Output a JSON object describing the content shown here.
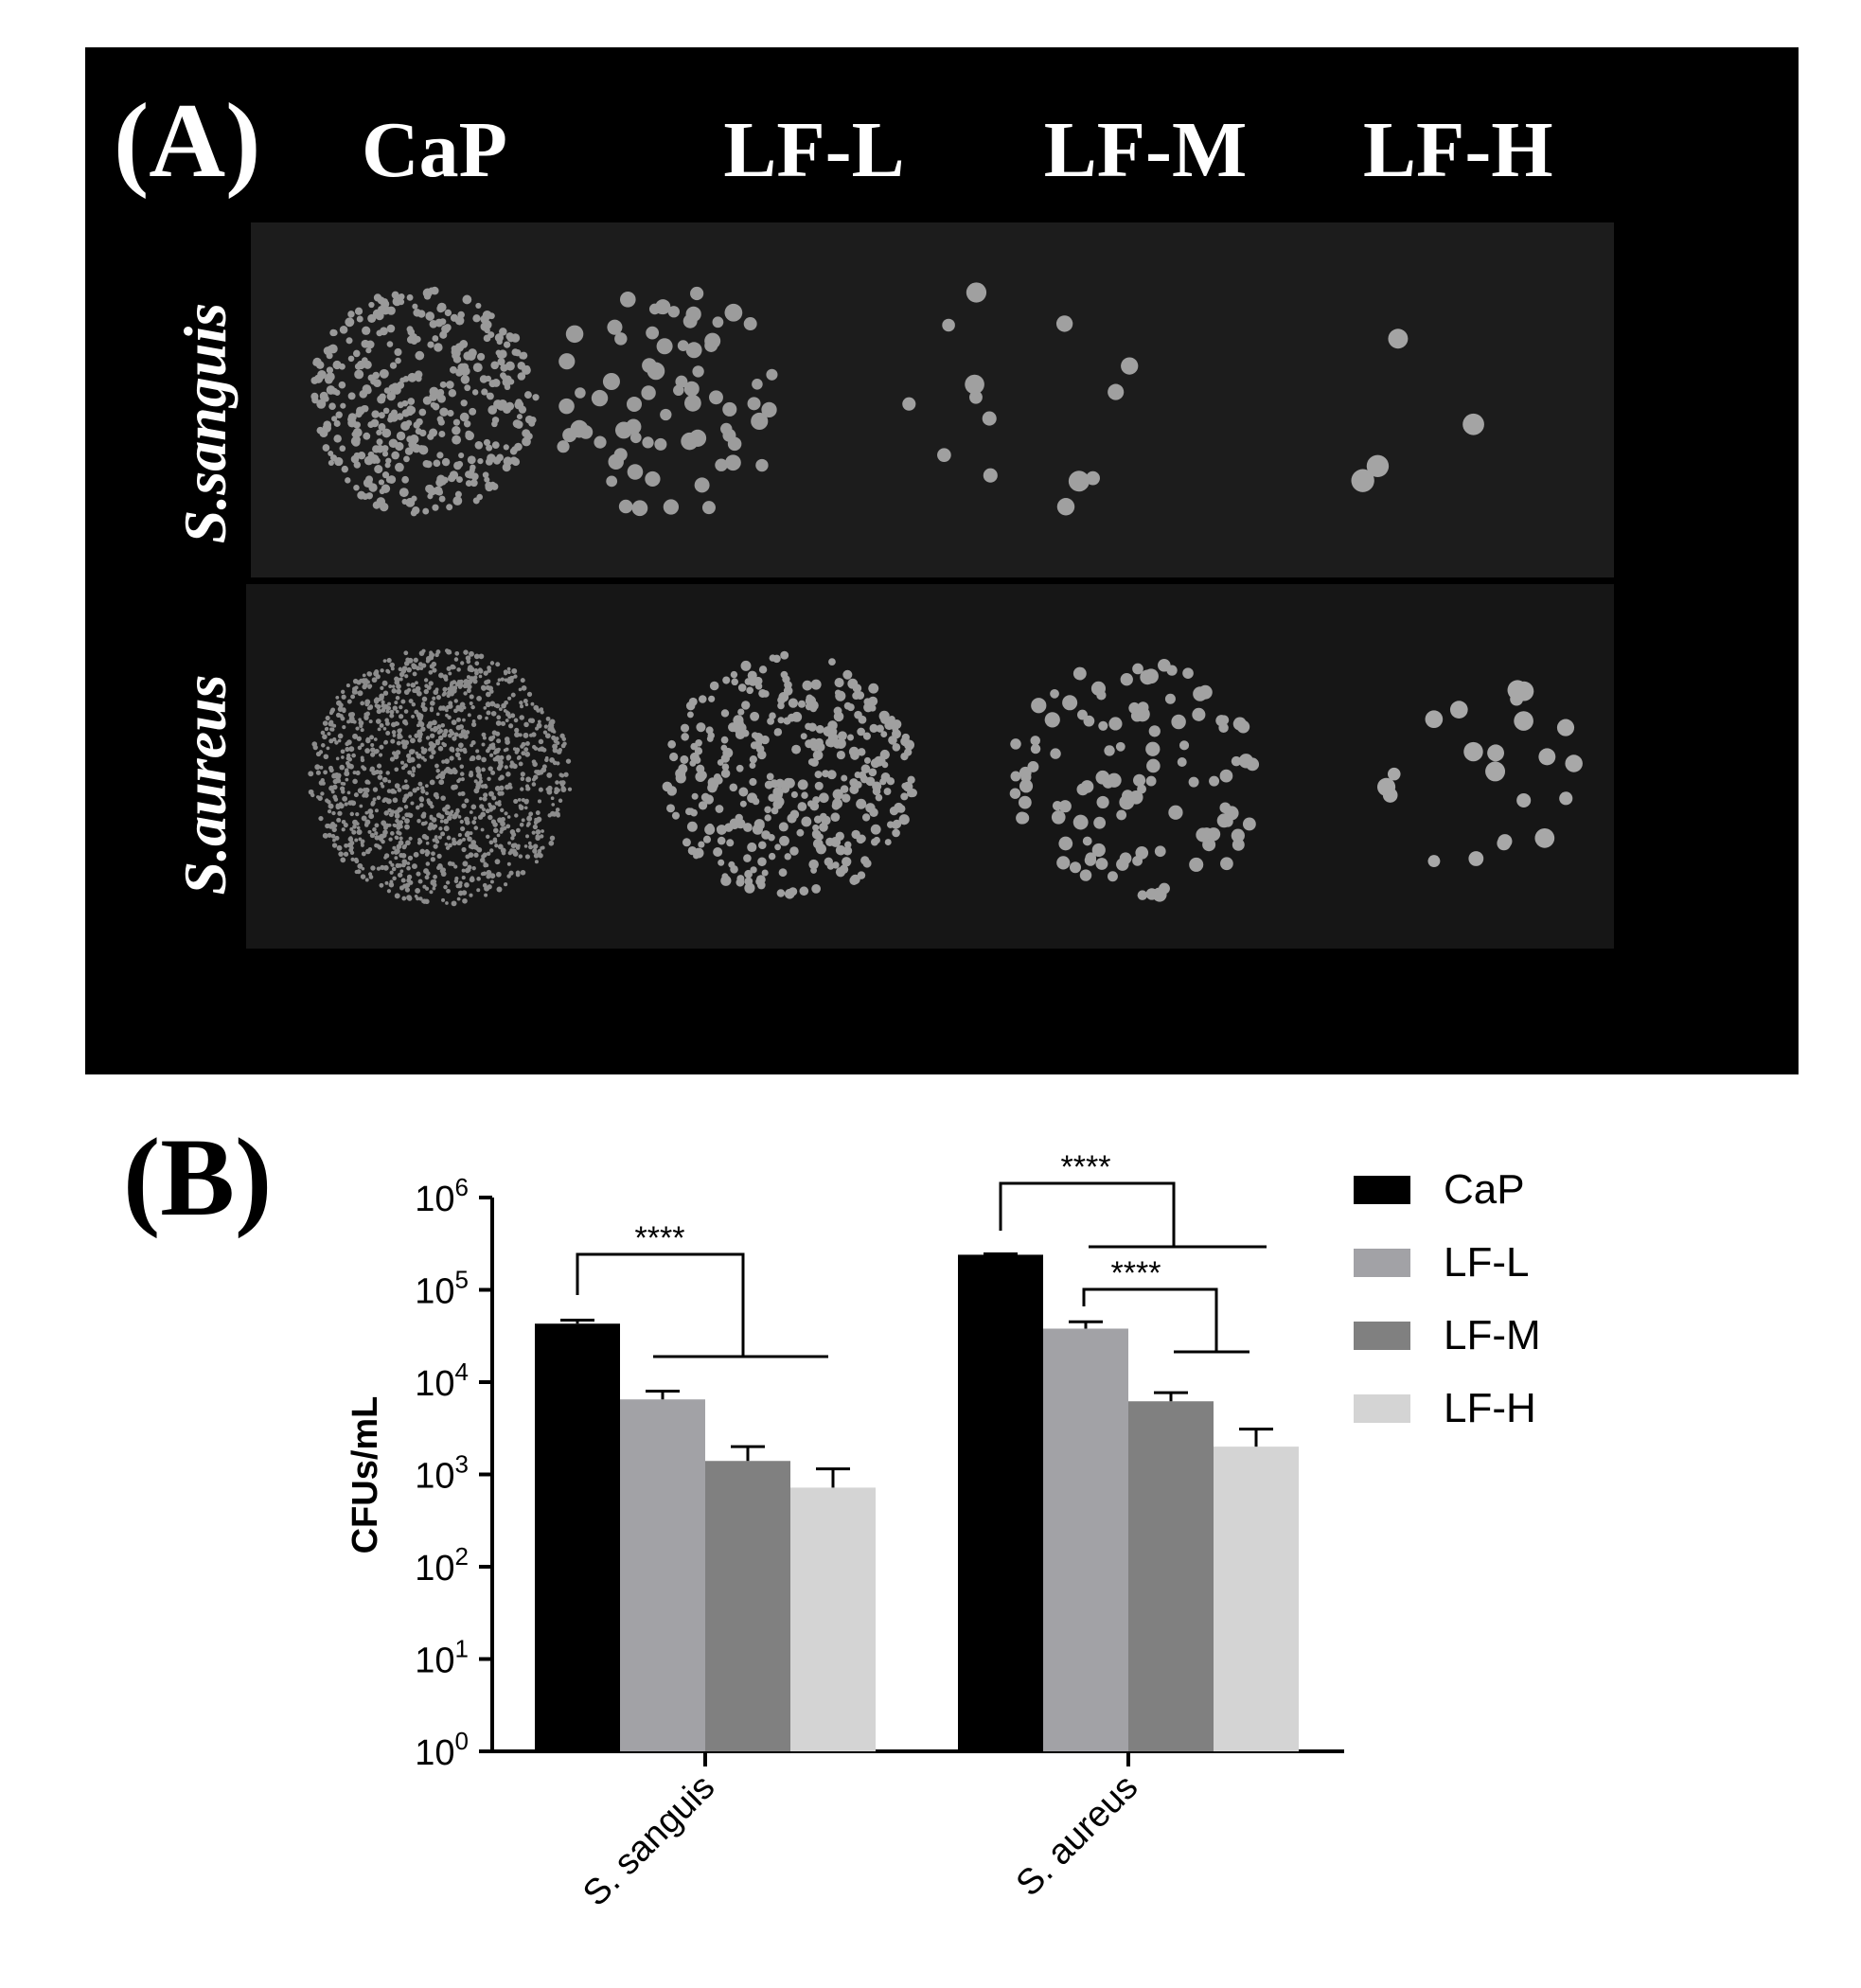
{
  "panel_a": {
    "panel_label": "(A)",
    "column_headers": [
      "CaP",
      "LF-L",
      "LF-M",
      "LF-H"
    ],
    "row_labels": [
      "S.sanguis",
      "S.aureus"
    ]
  },
  "panel_b": {
    "panel_label": "(B)"
  },
  "chart_data": {
    "type": "bar",
    "title": "",
    "xlabel": "",
    "ylabel": "CFUs/mL",
    "yscale": "log",
    "ylim": [
      1,
      1000000
    ],
    "y_ticks": [
      {
        "base": "10",
        "exp": "0"
      },
      {
        "base": "10",
        "exp": "1"
      },
      {
        "base": "10",
        "exp": "2"
      },
      {
        "base": "10",
        "exp": "3"
      },
      {
        "base": "10",
        "exp": "4"
      },
      {
        "base": "10",
        "exp": "5"
      },
      {
        "base": "10",
        "exp": "6"
      }
    ],
    "categories": [
      "S. sanguis",
      "S. aureus"
    ],
    "series": [
      {
        "name": "CaP",
        "color": "#000000",
        "values": [
          43000,
          240000
        ],
        "errors": [
          47000,
          245000
        ]
      },
      {
        "name": "LF-L",
        "color": "#a2a2a6",
        "values": [
          6500,
          38000
        ],
        "errors": [
          8000,
          45000
        ]
      },
      {
        "name": "LF-M",
        "color": "#808080",
        "values": [
          1400,
          6200
        ],
        "errors": [
          2000,
          7700
        ]
      },
      {
        "name": "LF-H",
        "color": "#d4d4d4",
        "values": [
          720,
          2000
        ],
        "errors": [
          1150,
          3100
        ]
      }
    ],
    "legend": {
      "position": "top-right"
    },
    "annotations": [
      {
        "text": "****",
        "category": "S. sanguis",
        "compare": "CaP vs LF-L, LF-M, LF-H"
      },
      {
        "text": "****",
        "category": "S. aureus",
        "compare": "CaP vs LF-L, LF-M, LF-H"
      },
      {
        "text": "****",
        "category": "S. aureus",
        "compare": "LF-L vs LF-M, LF-H"
      }
    ]
  }
}
